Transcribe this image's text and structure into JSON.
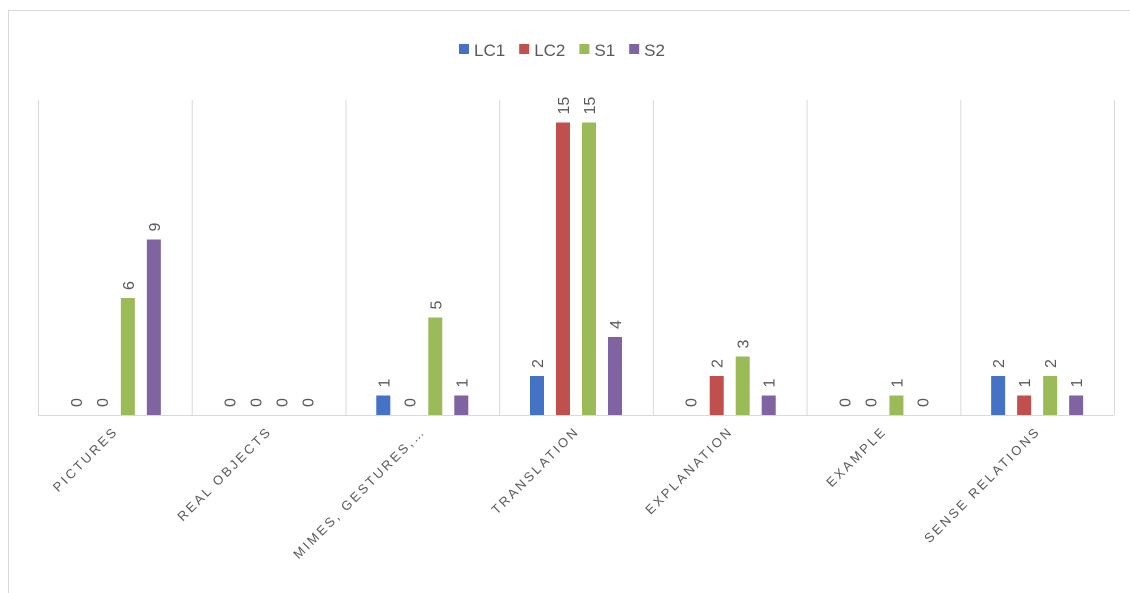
{
  "chart_data": {
    "type": "bar",
    "categories": [
      "PICTURES",
      "REAL OBJECTS",
      "MIMES, GESTURES,…",
      "TRANSLATION",
      "EXPLANATION",
      "EXAMPLE",
      "SENSE RELATIONS"
    ],
    "series": [
      {
        "name": "LC1",
        "color": "#4472c4",
        "values": [
          0,
          0,
          1,
          2,
          0,
          0,
          2
        ]
      },
      {
        "name": "LC2",
        "color": "#c0504d",
        "values": [
          0,
          0,
          0,
          15,
          2,
          0,
          1
        ]
      },
      {
        "name": "S1",
        "color": "#9bbb59",
        "values": [
          6,
          0,
          5,
          15,
          3,
          1,
          2
        ]
      },
      {
        "name": "S2",
        "color": "#8064a2",
        "values": [
          9,
          0,
          1,
          4,
          1,
          0,
          1
        ]
      }
    ],
    "legend": "top",
    "grid": true
  }
}
